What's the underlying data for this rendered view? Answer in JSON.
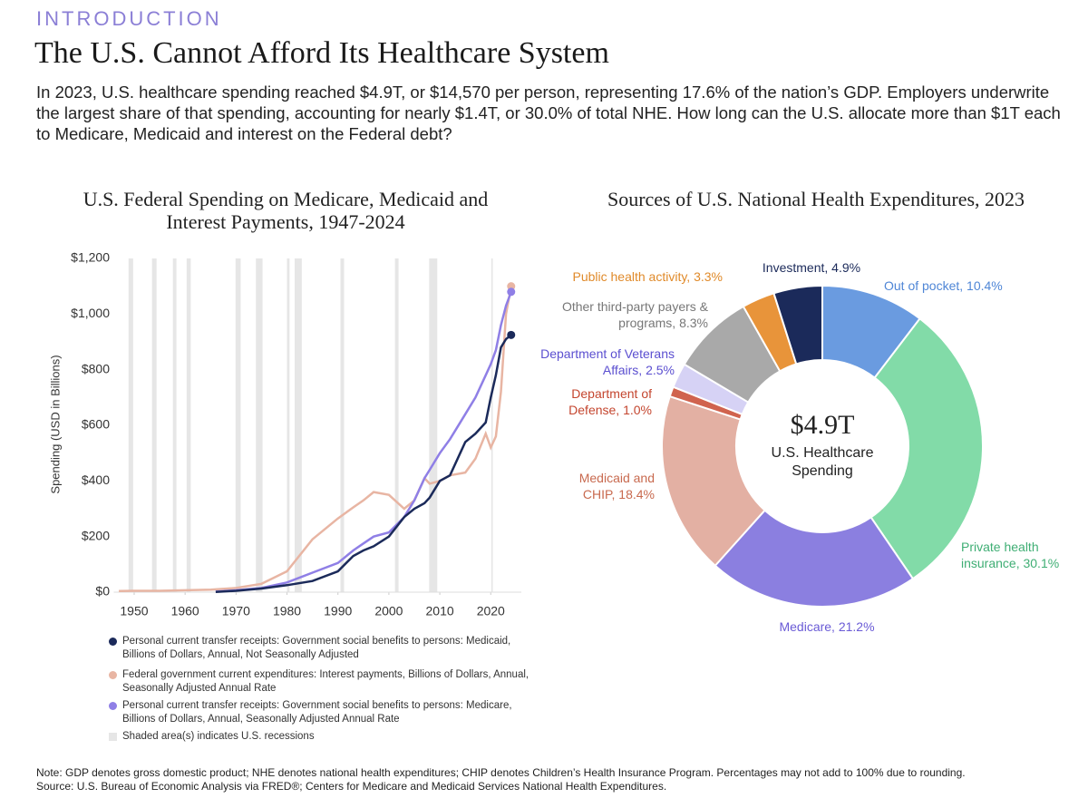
{
  "header": {
    "kicker": "INTRODUCTION",
    "title": "The U.S. Cannot Afford Its Healthcare System",
    "intro": "In 2023, U.S. healthcare spending reached $4.9T, or $14,570 per person, representing 17.6% of the nation’s GDP. Employers underwrite the largest share of that spending, accounting for nearly $1.4T, or 30.0% of total NHE. How long can the U.S. allocate more than $1T each to Medicare, Medicaid and interest on the Federal debt?"
  },
  "chart_data": [
    {
      "type": "line",
      "title": "U.S. Federal Spending on Medicare, Medicaid and Interest Payments, 1947-2024",
      "y_label": "Spending (USD in Billions)",
      "x": [
        1947,
        1950,
        1955,
        1960,
        1965,
        1966,
        1970,
        1975,
        1980,
        1985,
        1990,
        1993,
        1995,
        1997,
        2000,
        2003,
        2005,
        2007,
        2008,
        2010,
        2012,
        2015,
        2017,
        2019,
        2020,
        2021,
        2022,
        2023,
        2024
      ],
      "xlim": [
        1946,
        2026
      ],
      "xticks": [
        1950,
        1960,
        1970,
        1980,
        1990,
        2000,
        2010,
        2020
      ],
      "ylim": [
        0,
        1200
      ],
      "yticks": [
        {
          "value": 0,
          "label": "$0"
        },
        {
          "value": 200,
          "label": "$200"
        },
        {
          "value": 400,
          "label": "$400"
        },
        {
          "value": 600,
          "label": "$600"
        },
        {
          "value": 800,
          "label": "$800"
        },
        {
          "value": 1000,
          "label": "$1,000"
        },
        {
          "value": 1200,
          "label": "$1,200"
        }
      ],
      "series": [
        {
          "name": "Personal current transfer receipts: Government social benefits to persons: Medicaid, Billions of Dollars, Annual, Not Seasonally Adjusted",
          "color": "#1b2a5a",
          "values": [
            null,
            null,
            null,
            null,
            null,
            1,
            5,
            13,
            25,
            40,
            75,
            130,
            150,
            165,
            200,
            270,
            300,
            320,
            340,
            400,
            420,
            540,
            570,
            610,
            700,
            780,
            880,
            910,
            925
          ]
        },
        {
          "name": "Federal government current expenditures: Interest payments, Billions of Dollars, Annual, Seasonally Adjusted Annual Rate",
          "color": "#e8b5a3",
          "values": [
            4,
            5,
            5,
            7,
            9,
            10,
            15,
            30,
            75,
            190,
            265,
            305,
            330,
            360,
            350,
            300,
            330,
            410,
            390,
            400,
            420,
            430,
            480,
            570,
            520,
            560,
            720,
            1000,
            1100
          ]
        },
        {
          "name": "Personal current transfer receipts: Government social benefits to persons: Medicare, Billions of Dollars, Annual, Seasonally Adjusted Annual Rate",
          "color": "#8f7fe6",
          "values": [
            null,
            null,
            null,
            null,
            null,
            2,
            7,
            15,
            35,
            70,
            105,
            150,
            175,
            200,
            215,
            270,
            330,
            410,
            440,
            500,
            550,
            640,
            700,
            780,
            820,
            870,
            960,
            1030,
            1080
          ]
        }
      ],
      "recessions": [
        [
          1948.9,
          1949.8
        ],
        [
          1953.5,
          1954.4
        ],
        [
          1957.6,
          1958.3
        ],
        [
          1960.3,
          1961.1
        ],
        [
          1969.9,
          1970.9
        ],
        [
          1973.9,
          1975.2
        ],
        [
          1980.0,
          1980.5
        ],
        [
          1981.5,
          1982.9
        ],
        [
          1990.5,
          1991.2
        ],
        [
          2001.2,
          2001.9
        ],
        [
          2007.9,
          2009.5
        ],
        [
          2020.1,
          2020.4
        ]
      ],
      "recession_color": "#e6e6e6",
      "recession_label": "Shaded area(s) indicates U.S. recessions"
    },
    {
      "type": "pie",
      "title": "Sources of U.S. National Health Expenditures, 2023",
      "donut": true,
      "values": [
        10.4,
        30.1,
        21.2,
        18.4,
        1.0,
        2.5,
        8.3,
        3.3,
        4.9
      ],
      "value_labels": [
        "Out of pocket, 10.4%",
        "Private health insurance, 30.1%",
        "Medicare, 21.2%",
        "Medicaid and CHIP, 18.4%",
        "Department of Defense, 1.0%",
        "Department of Veterans Affairs, 2.5%",
        "Other third-party payers & programs, 8.3%",
        "Public health activity, 3.3%",
        "Investment, 4.9%"
      ],
      "colors": [
        "#6a9be0",
        "#82dba8",
        "#8b7fe0",
        "#e3b0a3",
        "#d0634e",
        "#d6d2f5",
        "#a9a9a9",
        "#e8943a",
        "#1b2a5a"
      ],
      "label_colors": [
        "#4f86d6",
        "#3fae74",
        "#6a5bd6",
        "#c86a4f",
        "#c4462f",
        "#5b4fd0",
        "#777777",
        "#e08a2a",
        "#1b2a5a"
      ],
      "center_value": "$4.9T",
      "center_label": "U.S. Healthcare Spending"
    }
  ],
  "notes": [
    "Note: GDP denotes gross domestic product; NHE denotes national health expenditures; CHIP denotes Children’s Health Insurance Program. Percentages may not add to 100% due to rounding.",
    "Source: U.S. Bureau of Economic Analysis via FRED®; Centers for Medicare and Medicaid Services National Health Expenditures."
  ]
}
